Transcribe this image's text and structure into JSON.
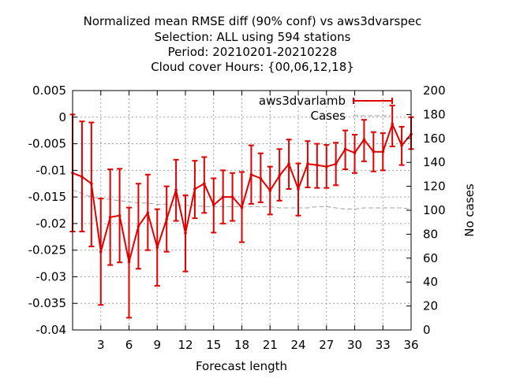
{
  "chart_data": {
    "type": "line",
    "title_lines": [
      "Normalized mean RMSE diff (90% conf) vs aws3dvarspec",
      "Selection: ALL using   594 stations",
      "Period: 20210201-20210228",
      "Cloud cover   Hours: {00,06,12,18}"
    ],
    "xlabel": "Forecast length",
    "ylabel": "",
    "y2label": "No cases",
    "xlim": [
      0,
      36
    ],
    "ylim": [
      -0.04,
      0.005
    ],
    "y2lim": [
      0,
      200
    ],
    "x_ticks": [
      3,
      6,
      9,
      12,
      15,
      18,
      21,
      24,
      27,
      30,
      33,
      36
    ],
    "y_ticks": [
      "0.005",
      "0",
      "-0.005",
      "-0.01",
      "-0.015",
      "-0.02",
      "-0.025",
      "-0.03",
      "-0.035",
      "-0.04"
    ],
    "y2_ticks": [
      "200",
      "180",
      "160",
      "140",
      "120",
      "100",
      "80",
      "60",
      "40",
      "20",
      "0"
    ],
    "grid": true,
    "legend_position": "top-right",
    "series": [
      {
        "name": "aws3dvarlamb",
        "color": "#e00000",
        "axis": "left",
        "x": [
          0,
          1,
          2,
          3,
          4,
          5,
          6,
          7,
          8,
          9,
          10,
          11,
          12,
          13,
          14,
          15,
          16,
          17,
          18,
          19,
          20,
          21,
          22,
          23,
          24,
          25,
          26,
          27,
          28,
          29,
          30,
          31,
          32,
          33,
          34,
          35,
          36
        ],
        "y": [
          -0.0105,
          -0.0112,
          -0.0125,
          -0.0253,
          -0.0188,
          -0.0185,
          -0.0272,
          -0.0205,
          -0.018,
          -0.0245,
          -0.0192,
          -0.0137,
          -0.0218,
          -0.0135,
          -0.0125,
          -0.0165,
          -0.015,
          -0.015,
          -0.017,
          -0.0108,
          -0.0115,
          -0.0138,
          -0.011,
          -0.0088,
          -0.0135,
          -0.0088,
          -0.009,
          -0.0093,
          -0.0088,
          -0.006,
          -0.0067,
          -0.0042,
          -0.0065,
          -0.0065,
          -0.0013,
          -0.0053,
          -0.0032
        ],
        "err_low": [
          -0.0215,
          -0.0215,
          -0.0243,
          -0.0353,
          -0.0278,
          -0.0273,
          -0.0377,
          -0.0285,
          -0.025,
          -0.0317,
          -0.0253,
          -0.0195,
          -0.029,
          -0.019,
          -0.018,
          -0.0217,
          -0.02,
          -0.0195,
          -0.0235,
          -0.0163,
          -0.016,
          -0.0183,
          -0.0157,
          -0.0135,
          -0.0185,
          -0.0132,
          -0.0133,
          -0.0133,
          -0.0128,
          -0.0098,
          -0.0105,
          -0.0083,
          -0.0102,
          -0.01,
          -0.0055,
          -0.009,
          -0.006
        ],
        "err_high": [
          0.0005,
          -0.0008,
          -0.001,
          -0.0153,
          -0.0098,
          -0.0097,
          -0.017,
          -0.0125,
          -0.0108,
          -0.0173,
          -0.013,
          -0.008,
          -0.0147,
          -0.0082,
          -0.0075,
          -0.0115,
          -0.01,
          -0.0105,
          -0.0103,
          -0.0053,
          -0.0068,
          -0.0093,
          -0.006,
          -0.0042,
          -0.0087,
          -0.0045,
          -0.005,
          -0.0052,
          -0.0048,
          -0.0025,
          -0.0033,
          -0.0005,
          -0.0028,
          -0.003,
          0.0022,
          -0.0018,
          0.0
        ]
      },
      {
        "name": "Cases",
        "color": "#a0a0a0",
        "axis": "right",
        "dashed": true,
        "x": [
          0,
          1,
          2,
          3,
          4,
          5,
          6,
          7,
          8,
          9,
          10,
          11,
          12,
          13,
          14,
          15,
          16,
          17,
          18,
          19,
          20,
          21,
          22,
          23,
          24,
          25,
          26,
          27,
          28,
          29,
          30,
          31,
          32,
          33,
          34,
          35,
          36
        ],
        "y": [
          117,
          114,
          111,
          110,
          109,
          108,
          107,
          106,
          106,
          105,
          105,
          104,
          104,
          104,
          103,
          103,
          103,
          103,
          103,
          103,
          103,
          103,
          102,
          102,
          102,
          102,
          103,
          103,
          102,
          101,
          101,
          102,
          102,
          102,
          102,
          102,
          101
        ]
      }
    ]
  }
}
